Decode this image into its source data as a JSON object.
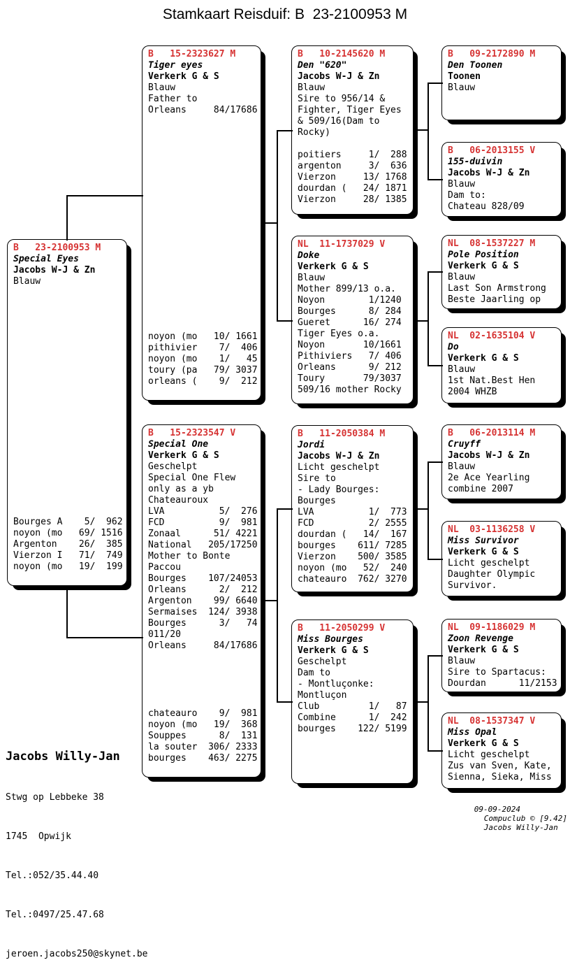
{
  "title": "Stamkaart Reisduif: B  23-2100953 M",
  "colors": {
    "header_red": "#d63333",
    "text": "#000000",
    "background": "#ffffff"
  },
  "boxes": {
    "subject": {
      "country": "B",
      "ring": "23-2100953",
      "sex": "M",
      "name": "Special Eyes",
      "loft": "Jacobs W-J & Zn",
      "lines": [
        "Blauw"
      ],
      "bottom_lines": [
        "Bourges A    5/  962",
        "noyon (mo   69/ 1516",
        "Argenton    26/  385",
        "Vierzon I   71/  749",
        "noyon (mo   19/  199"
      ]
    },
    "father": {
      "country": "B",
      "ring": "15-2323627",
      "sex": "M",
      "name": "Tiger eyes",
      "loft": "Verkerk G & S",
      "lines": [
        "Blauw",
        "Father to",
        "Orleans     84/17686"
      ],
      "bottom_lines": [
        "noyon (mo   10/ 1661",
        "pithivier    7/  406",
        "noyon (mo    1/   45",
        "toury (pa   79/ 3037",
        "orleans (    9/  212"
      ]
    },
    "mother": {
      "country": "B",
      "ring": "15-2323547",
      "sex": "V",
      "name": "Special One",
      "loft": "Verkerk G & S",
      "lines": [
        "Geschelpt",
        "Special One Flew",
        "only as a yb",
        "Chateauroux",
        "LVA          5/  276",
        "FCD          9/  981",
        "Zonaal      51/ 4221",
        "National   205/17250",
        "Mother to Bonte",
        "Paccou",
        "Bourges    107/24053",
        "Orleans      2/  212",
        "Argenton    99/ 6640",
        "Sermaises  124/ 3938",
        "Bourges      3/   74",
        "011/20",
        "Orleans     84/17686"
      ],
      "bottom_lines": [
        "chateauro    9/  981",
        "noyon (mo   19/  368",
        "Souppes      8/  131",
        "la souter  306/ 2333",
        "bourges    463/ 2275"
      ]
    },
    "gp1": {
      "country": "B",
      "ring": "10-2145620",
      "sex": "M",
      "name": "Den \"620\"",
      "loft": "Jacobs W-J & Zn",
      "lines": [
        "Blauw",
        "Sire to 956/14 &",
        "Fighter, Tiger Eyes",
        "& 509/16(Dam to",
        "Rocky)",
        "",
        "poitiers     1/  288",
        "argenton     3/  636",
        "Vierzon     13/ 1768",
        "dourdan (   24/ 1871",
        "Vierzon     28/ 1385"
      ]
    },
    "gp2": {
      "country": "NL",
      "ring": "11-1737029",
      "sex": "V",
      "name": "Doke",
      "loft": "Verkerk G & S",
      "lines": [
        "Blauw",
        "Mother 899/13 o.a.",
        "Noyon        1/1240",
        "Bourges      8/ 284",
        "Gueret      16/ 274",
        "Tiger Eyes o.a.",
        "Noyon       10/1661",
        "Pithiviers   7/ 406",
        "Orleans      9/ 212",
        "Toury       79/3037",
        "509/16 mother Rocky"
      ]
    },
    "gp3": {
      "country": "B",
      "ring": "11-2050384",
      "sex": "M",
      "name": "Jordi",
      "loft": "Jacobs W-J & Zn",
      "lines": [
        "Licht geschelpt",
        "Sire to",
        "- Lady Bourges:",
        "Bourges",
        "LVA          1/  773",
        "FCD          2/ 2555",
        "dourdan (   14/  167",
        "bourges    611/ 7285",
        "Vierzon    500/ 3585",
        "noyon (mo   52/  240",
        "chateauro  762/ 3270"
      ]
    },
    "gp4": {
      "country": "B",
      "ring": "11-2050299",
      "sex": "V",
      "name": "Miss Bourges",
      "loft": "Verkerk G & S",
      "lines": [
        "Geschelpt",
        "Dam to",
        "- Montluçonke:",
        "Montluçon",
        "Club         1/   87",
        "Combine      1/  242",
        "bourges    122/ 5199"
      ]
    },
    "ggp1": {
      "country": "B",
      "ring": "09-2172890",
      "sex": "M",
      "name": "Den Toonen",
      "loft": "Toonen",
      "lines": [
        "Blauw"
      ]
    },
    "ggp2": {
      "country": "B",
      "ring": "06-2013155",
      "sex": "V",
      "name": "155-duivin",
      "loft": "Jacobs W-J & Zn",
      "lines": [
        "Blauw",
        "Dam to:",
        "Chateau 828/09"
      ]
    },
    "ggp3": {
      "country": "NL",
      "ring": "08-1537227",
      "sex": "M",
      "name": "Pole Position",
      "loft": "Verkerk G & S",
      "lines": [
        "Blauw",
        "Last Son Armstrong",
        "Beste Jaarling op"
      ]
    },
    "ggp4": {
      "country": "NL",
      "ring": "02-1635104",
      "sex": "V",
      "name": "Do",
      "loft": "Verkerk G & S",
      "lines": [
        "Blauw",
        "1st Nat.Best Hen",
        "2004 WHZB"
      ]
    },
    "ggp5": {
      "country": "B",
      "ring": "06-2013114",
      "sex": "M",
      "name": "Cruyff",
      "loft": "Jacobs W-J & Zn",
      "lines": [
        "Blauw",
        "2e Ace Yearling",
        "combine 2007"
      ]
    },
    "ggp6": {
      "country": "NL",
      "ring": "03-1136258",
      "sex": "V",
      "name": "Miss Survivor",
      "loft": "Verkerk G & S",
      "lines": [
        "Licht geschelpt",
        "Daughter Olympic",
        "Survivor."
      ]
    },
    "ggp7": {
      "country": "NL",
      "ring": "09-1186029",
      "sex": "M",
      "name": "Zoon Revenge",
      "loft": "Verkerk G & S",
      "lines": [
        "Blauw",
        "Sire to Spartacus:",
        "Dourdan      11/2153"
      ]
    },
    "ggp8": {
      "country": "NL",
      "ring": "08-1537347",
      "sex": "V",
      "name": "Miss Opal",
      "loft": "Verkerk G & S",
      "lines": [
        "Licht geschelpt",
        "Zus van Sven, Kate,",
        "Sienna, Sieka, Miss"
      ]
    }
  },
  "owner": {
    "name": "Jacobs Willy-Jan",
    "address_lines": [
      "Stwg op Lebbeke 38",
      "1745  Opwijk",
      "Tel.:052/35.44.40",
      "Tel.:0497/25.47.68",
      "jeroen.jacobs250@skynet.be"
    ]
  },
  "footer": {
    "date": "09-09-2024",
    "program": "Compuclub © [9.42]",
    "owner": "Jacobs Willy-Jan"
  }
}
